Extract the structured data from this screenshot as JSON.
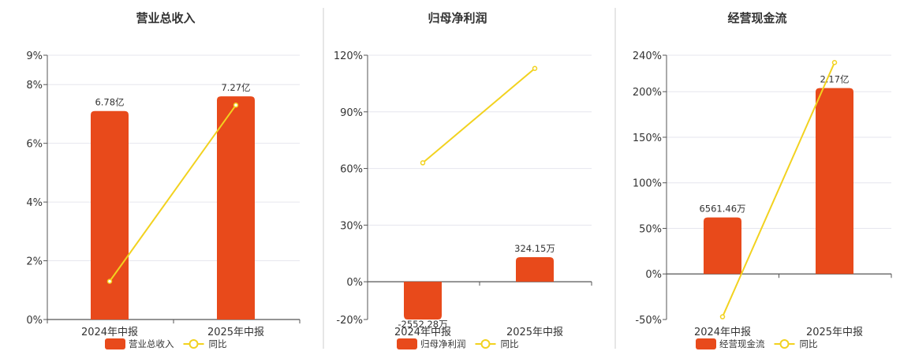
{
  "colors": {
    "bar": "#E84A1B",
    "line": "#F2D21F",
    "grid": "#E6E6EE",
    "axis": "#555555",
    "divider": "#CCCCCC"
  },
  "chart_data": [
    {
      "type": "bar",
      "title": "营业总收入",
      "categories": [
        "2024年中报",
        "2025年中报"
      ],
      "ylim": [
        0,
        9
      ],
      "yticks": [
        "0%",
        "2%",
        "4%",
        "6%",
        "8%",
        "9%"
      ],
      "ytick_values": [
        0,
        2,
        4,
        6,
        8,
        9
      ],
      "grid": true,
      "legend_position": "bottom-center",
      "series": [
        {
          "name": "营业总收入",
          "type": "bar",
          "values": [
            7.1,
            7.6
          ],
          "data_labels": [
            "6.78亿",
            "7.27亿"
          ]
        },
        {
          "name": "同比",
          "type": "line",
          "values": [
            1.3,
            7.3
          ]
        }
      ]
    },
    {
      "type": "bar",
      "title": "归母净利润",
      "categories": [
        "2024年中报",
        "2025年中报"
      ],
      "ylim": [
        -20,
        120
      ],
      "yticks": [
        "-20%",
        "0%",
        "30%",
        "60%",
        "90%",
        "120%"
      ],
      "ytick_values": [
        -20,
        0,
        30,
        60,
        90,
        120
      ],
      "grid": true,
      "legend_position": "bottom-center",
      "series": [
        {
          "name": "归母净利润",
          "type": "bar",
          "values": [
            -20,
            13
          ],
          "data_labels": [
            "-2552.28万",
            "324.15万"
          ]
        },
        {
          "name": "同比",
          "type": "line",
          "values": [
            63,
            113
          ]
        }
      ]
    },
    {
      "type": "bar",
      "title": "经营现金流",
      "categories": [
        "2024年中报",
        "2025年中报"
      ],
      "ylim": [
        -50,
        240
      ],
      "yticks": [
        "-50%",
        "0%",
        "50%",
        "100%",
        "150%",
        "200%",
        "240%"
      ],
      "ytick_values": [
        -50,
        0,
        50,
        100,
        150,
        200,
        240
      ],
      "grid": true,
      "legend_position": "bottom-center",
      "series": [
        {
          "name": "经营现金流",
          "type": "bar",
          "values": [
            62,
            204
          ],
          "data_labels": [
            "6561.46万",
            "2.17亿"
          ]
        },
        {
          "name": "同比",
          "type": "line",
          "values": [
            -47,
            232
          ]
        }
      ]
    }
  ]
}
